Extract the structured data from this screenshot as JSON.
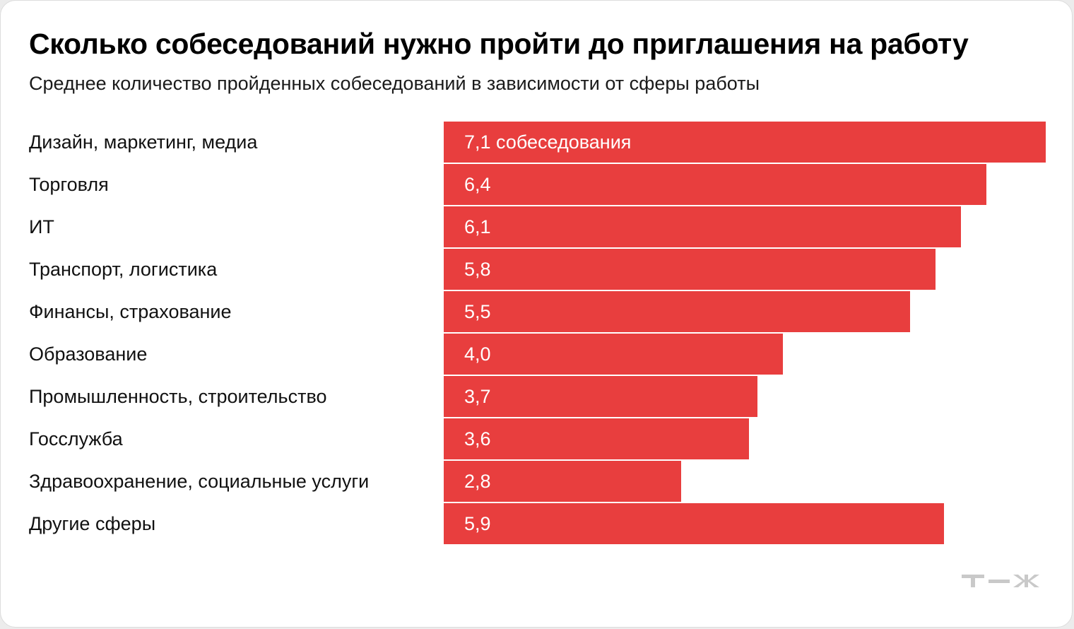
{
  "header": {
    "title": "Сколько собеседований нужно пройти до приглашения на работу",
    "subtitle": "Среднее количество пройденных собеседований в зависимости от сферы работы"
  },
  "chart_data": {
    "type": "bar",
    "orientation": "horizontal",
    "title": "Сколько собеседований нужно пройти до приглашения на работу",
    "subtitle": "Среднее количество пройденных собеседований в зависимости от сферы работы",
    "categories": [
      "Дизайн, маркетинг, медиа",
      "Торговля",
      "ИТ",
      "Транспорт, логистика",
      "Финансы, страхование",
      "Образование",
      "Промышленность, строительство",
      "Госслужба",
      "Здравоохранение, социальные услуги",
      "Другие сферы"
    ],
    "values": [
      7.1,
      6.4,
      6.1,
      5.8,
      5.5,
      4.0,
      3.7,
      3.6,
      2.8,
      5.9
    ],
    "value_labels": [
      "7,1 собеседования",
      "6,4",
      "6,1",
      "5,8",
      "5,5",
      "4,0",
      "3,7",
      "3,6",
      "2,8",
      "5,9"
    ],
    "xlim": [
      0,
      7.1
    ],
    "grid": false,
    "bar_color": "#e83e3e"
  },
  "brand": {
    "logo_text": "т—ж",
    "logo_color": "#c9c9c9"
  }
}
